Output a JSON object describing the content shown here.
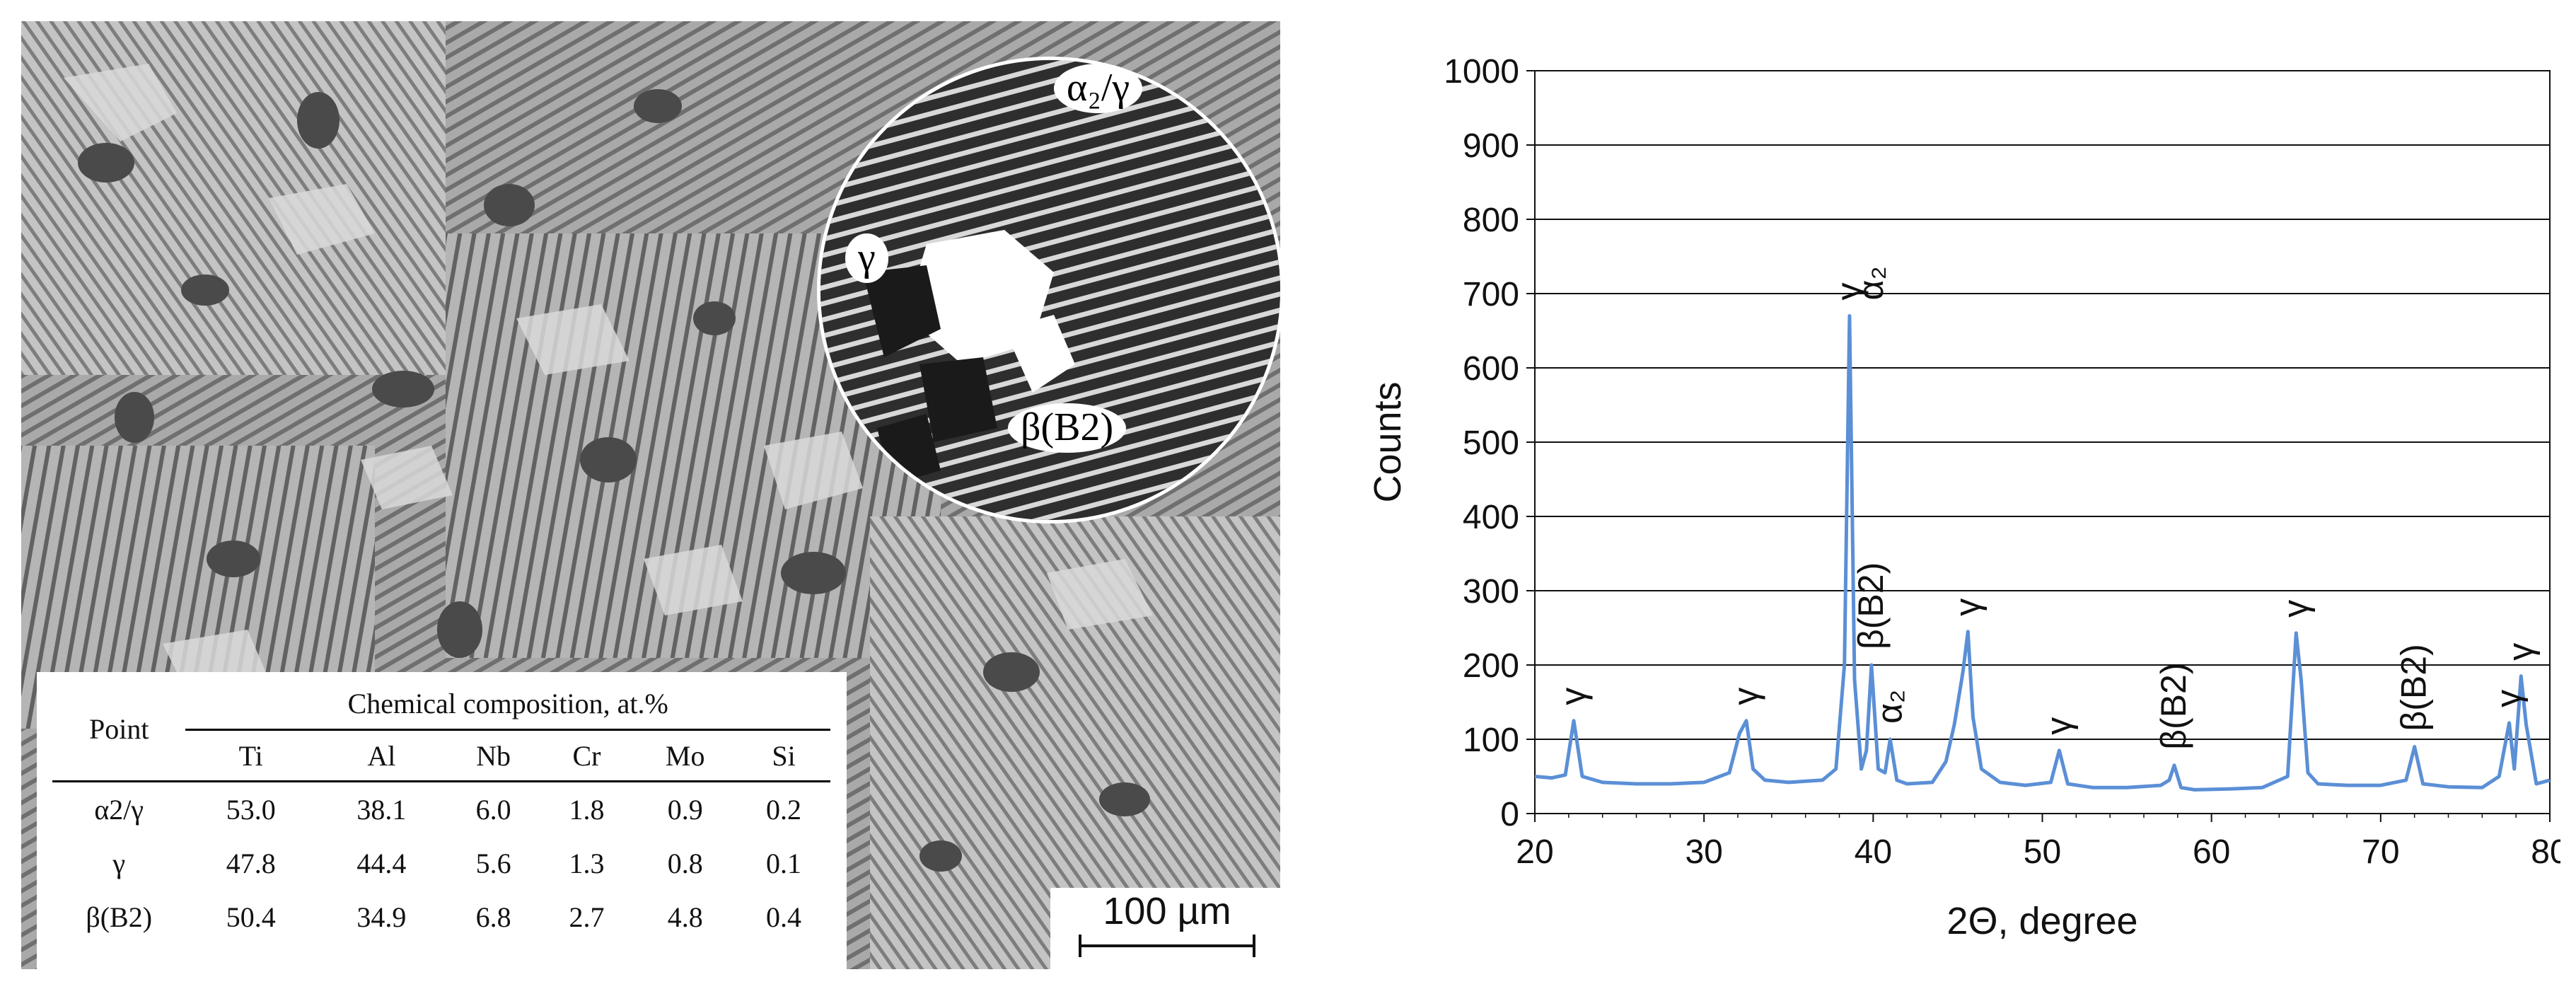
{
  "micrograph": {
    "inset_labels": {
      "a2g": "α₂/γ",
      "gamma": "γ",
      "beta": "β(B2)"
    },
    "scale_bar": "100 µm",
    "table": {
      "point_header": "Point",
      "group_header": "Chemical composition, at.%",
      "columns": [
        "Ti",
        "Al",
        "Nb",
        "Cr",
        "Mo",
        "Si"
      ],
      "rows": [
        {
          "point": "α2/γ",
          "values": [
            "53.0",
            "38.1",
            "6.0",
            "1.8",
            "0.9",
            "0.2"
          ]
        },
        {
          "point": "γ",
          "values": [
            "47.8",
            "44.4",
            "5.6",
            "1.3",
            "0.8",
            "0.1"
          ]
        },
        {
          "point": "β(B2)",
          "values": [
            "50.4",
            "34.9",
            "6.8",
            "2.7",
            "4.8",
            "0.4"
          ]
        }
      ]
    }
  },
  "chart_data": {
    "type": "line",
    "xlabel": "2Θ, degree",
    "ylabel": "Counts",
    "xlim": [
      20,
      80
    ],
    "ylim": [
      0,
      1000
    ],
    "xticks": [
      20,
      30,
      40,
      50,
      60,
      70,
      80
    ],
    "yticks": [
      0,
      100,
      200,
      300,
      400,
      500,
      600,
      700,
      800,
      900,
      1000
    ],
    "grid": "horizontal",
    "line_color": "#5b8fd6",
    "series": [
      {
        "x": [
          20,
          21,
          21.8,
          22.3,
          22.8,
          24,
          26,
          28,
          30,
          31.5,
          32.1,
          32.5,
          32.9,
          33.6,
          35,
          37,
          37.8,
          38.3,
          38.6,
          38.9,
          39.3,
          39.6,
          39.9,
          40.3,
          40.7,
          41.0,
          41.4,
          42,
          43.5,
          44.3,
          44.8,
          45.3,
          45.6,
          45.9,
          46.4,
          47.5,
          49,
          50.5,
          51.0,
          51.5,
          53,
          55,
          57,
          57.5,
          57.8,
          58.2,
          59,
          61,
          63,
          64.5,
          65.0,
          65.3,
          65.7,
          66.3,
          68,
          70,
          71.5,
          72.0,
          72.5,
          74,
          76,
          77.0,
          77.6,
          77.9,
          78.3,
          78.6,
          79.2,
          80
        ],
        "y": [
          50,
          48,
          52,
          125,
          50,
          42,
          40,
          40,
          42,
          55,
          108,
          125,
          60,
          45,
          42,
          45,
          60,
          200,
          670,
          180,
          60,
          85,
          200,
          60,
          55,
          100,
          45,
          40,
          42,
          70,
          120,
          190,
          245,
          130,
          60,
          42,
          38,
          42,
          85,
          40,
          35,
          35,
          38,
          45,
          65,
          35,
          32,
          33,
          35,
          50,
          243,
          180,
          55,
          40,
          38,
          38,
          45,
          90,
          40,
          36,
          35,
          50,
          122,
          60,
          185,
          120,
          40,
          45
        ]
      }
    ],
    "peak_labels": [
      {
        "x": 22.3,
        "y": 125,
        "text": "γ"
      },
      {
        "x": 32.5,
        "y": 125,
        "text": "γ"
      },
      {
        "x": 38.6,
        "y": 670,
        "text": "γ"
      },
      {
        "x": 39.9,
        "y": 670,
        "text": "α₂"
      },
      {
        "x": 39.9,
        "y": 200,
        "text": "β(B2)"
      },
      {
        "x": 41.0,
        "y": 100,
        "text": "α₂"
      },
      {
        "x": 45.6,
        "y": 245,
        "text": "γ"
      },
      {
        "x": 51.0,
        "y": 85,
        "text": "γ"
      },
      {
        "x": 57.8,
        "y": 65,
        "text": "β(B2)"
      },
      {
        "x": 65.0,
        "y": 243,
        "text": "γ"
      },
      {
        "x": 72.0,
        "y": 90,
        "text": "β(B2)"
      },
      {
        "x": 77.6,
        "y": 122,
        "text": "γ"
      },
      {
        "x": 78.3,
        "y": 185,
        "text": "γ"
      }
    ]
  }
}
